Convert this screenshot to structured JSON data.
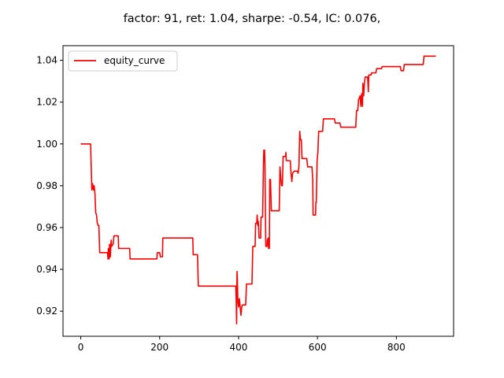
{
  "chart_data": {
    "type": "line",
    "title": "factor: 91, ret: 1.04, sharpe: -0.54, IC: 0.076,",
    "xlabel": "",
    "ylabel": "",
    "xlim": [
      -45,
      945
    ],
    "ylim": [
      0.908,
      1.047
    ],
    "x_ticks": [
      0,
      200,
      400,
      600,
      800
    ],
    "x_tick_labels": [
      "0",
      "200",
      "400",
      "600",
      "800"
    ],
    "y_ticks": [
      0.92,
      0.94,
      0.96,
      0.98,
      1.0,
      1.02,
      1.04
    ],
    "y_tick_labels": [
      "0.92",
      "0.94",
      "0.96",
      "0.98",
      "1.00",
      "1.02",
      "1.04"
    ],
    "grid": false,
    "legend": {
      "placement": "top-left",
      "entries": [
        "equity_curve"
      ]
    },
    "series": [
      {
        "name": "equity_curve",
        "color": "#ff0000",
        "points": [
          [
            0,
            1.0
          ],
          [
            25,
            1.0
          ],
          [
            26,
            0.993
          ],
          [
            28,
            0.978
          ],
          [
            30,
            0.981
          ],
          [
            32,
            0.978
          ],
          [
            34,
            0.98
          ],
          [
            36,
            0.976
          ],
          [
            38,
            0.967
          ],
          [
            40,
            0.966
          ],
          [
            42,
            0.962
          ],
          [
            44,
            0.961
          ],
          [
            46,
            0.961
          ],
          [
            48,
            0.948
          ],
          [
            68,
            0.948
          ],
          [
            69,
            0.945
          ],
          [
            70,
            0.95
          ],
          [
            72,
            0.945
          ],
          [
            73,
            0.952
          ],
          [
            75,
            0.946
          ],
          [
            77,
            0.954
          ],
          [
            78,
            0.951
          ],
          [
            82,
            0.952
          ],
          [
            84,
            0.956
          ],
          [
            95,
            0.956
          ],
          [
            96,
            0.95
          ],
          [
            124,
            0.95
          ],
          [
            125,
            0.945
          ],
          [
            193,
            0.945
          ],
          [
            194,
            0.948
          ],
          [
            200,
            0.948
          ],
          [
            202,
            0.946
          ],
          [
            207,
            0.946
          ],
          [
            208,
            0.955
          ],
          [
            284,
            0.955
          ],
          [
            285,
            0.947
          ],
          [
            296,
            0.947
          ],
          [
            298,
            0.932
          ],
          [
            393,
            0.932
          ],
          [
            394,
            0.926
          ],
          [
            395,
            0.914
          ],
          [
            396,
            0.939
          ],
          [
            397,
            0.935
          ],
          [
            398,
            0.926
          ],
          [
            400,
            0.922
          ],
          [
            402,
            0.926
          ],
          [
            404,
            0.922
          ],
          [
            406,
            0.918
          ],
          [
            408,
            0.922
          ],
          [
            410,
            0.923
          ],
          [
            418,
            0.923
          ],
          [
            420,
            0.933
          ],
          [
            434,
            0.933
          ],
          [
            436,
            0.951
          ],
          [
            442,
            0.951
          ],
          [
            443,
            0.962
          ],
          [
            446,
            0.962
          ],
          [
            447,
            0.966
          ],
          [
            449,
            0.961
          ],
          [
            450,
            0.963
          ],
          [
            452,
            0.955
          ],
          [
            456,
            0.955
          ],
          [
            457,
            0.965
          ],
          [
            461,
            0.965
          ],
          [
            463,
            0.99
          ],
          [
            464,
            0.997
          ],
          [
            466,
            0.997
          ],
          [
            467,
            0.988
          ],
          [
            469,
            0.951
          ],
          [
            472,
            0.951
          ],
          [
            473,
            0.954
          ],
          [
            475,
            0.955
          ],
          [
            476,
            0.95
          ],
          [
            478,
            0.95
          ],
          [
            479,
            0.983
          ],
          [
            481,
            0.983
          ],
          [
            483,
            0.968
          ],
          [
            503,
            0.968
          ],
          [
            505,
            0.989
          ],
          [
            507,
            0.984
          ],
          [
            509,
            0.98
          ],
          [
            511,
            0.98
          ],
          [
            513,
            0.994
          ],
          [
            519,
            0.994
          ],
          [
            520,
            0.996
          ],
          [
            521,
            0.992
          ],
          [
            531,
            0.992
          ],
          [
            533,
            0.986
          ],
          [
            535,
            0.982
          ],
          [
            537,
            0.986
          ],
          [
            541,
            0.987
          ],
          [
            549,
            0.987
          ],
          [
            551,
            0.986
          ],
          [
            553,
            0.989
          ],
          [
            555,
            1.006
          ],
          [
            557,
            1.002
          ],
          [
            559,
            1.002
          ],
          [
            561,
            0.993
          ],
          [
            573,
            0.993
          ],
          [
            575,
            0.989
          ],
          [
            586,
            0.989
          ],
          [
            588,
            0.983
          ],
          [
            589,
            0.966
          ],
          [
            595,
            0.966
          ],
          [
            596,
            0.972
          ],
          [
            597,
            0.972
          ],
          [
            599,
            0.992
          ],
          [
            601,
            0.996
          ],
          [
            603,
            1.006
          ],
          [
            613,
            1.006
          ],
          [
            615,
            1.012
          ],
          [
            643,
            1.012
          ],
          [
            645,
            1.01
          ],
          [
            657,
            1.01
          ],
          [
            659,
            1.008
          ],
          [
            697,
            1.008
          ],
          [
            699,
            1.016
          ],
          [
            702,
            1.016
          ],
          [
            704,
            1.021
          ],
          [
            708,
            1.023
          ],
          [
            710,
            1.018
          ],
          [
            712,
            1.024
          ],
          [
            714,
            1.018
          ],
          [
            715,
            1.029
          ],
          [
            717,
            1.023
          ],
          [
            719,
            1.029
          ],
          [
            721,
            1.032
          ],
          [
            727,
            1.032
          ],
          [
            729,
            1.025
          ],
          [
            730,
            1.033
          ],
          [
            736,
            1.033
          ],
          [
            737,
            1.034
          ],
          [
            748,
            1.034
          ],
          [
            750,
            1.036
          ],
          [
            762,
            1.036
          ],
          [
            764,
            1.037
          ],
          [
            810,
            1.037
          ],
          [
            812,
            1.035
          ],
          [
            818,
            1.035
          ],
          [
            820,
            1.038
          ],
          [
            868,
            1.038
          ],
          [
            870,
            1.042
          ],
          [
            900,
            1.042
          ]
        ]
      }
    ]
  }
}
